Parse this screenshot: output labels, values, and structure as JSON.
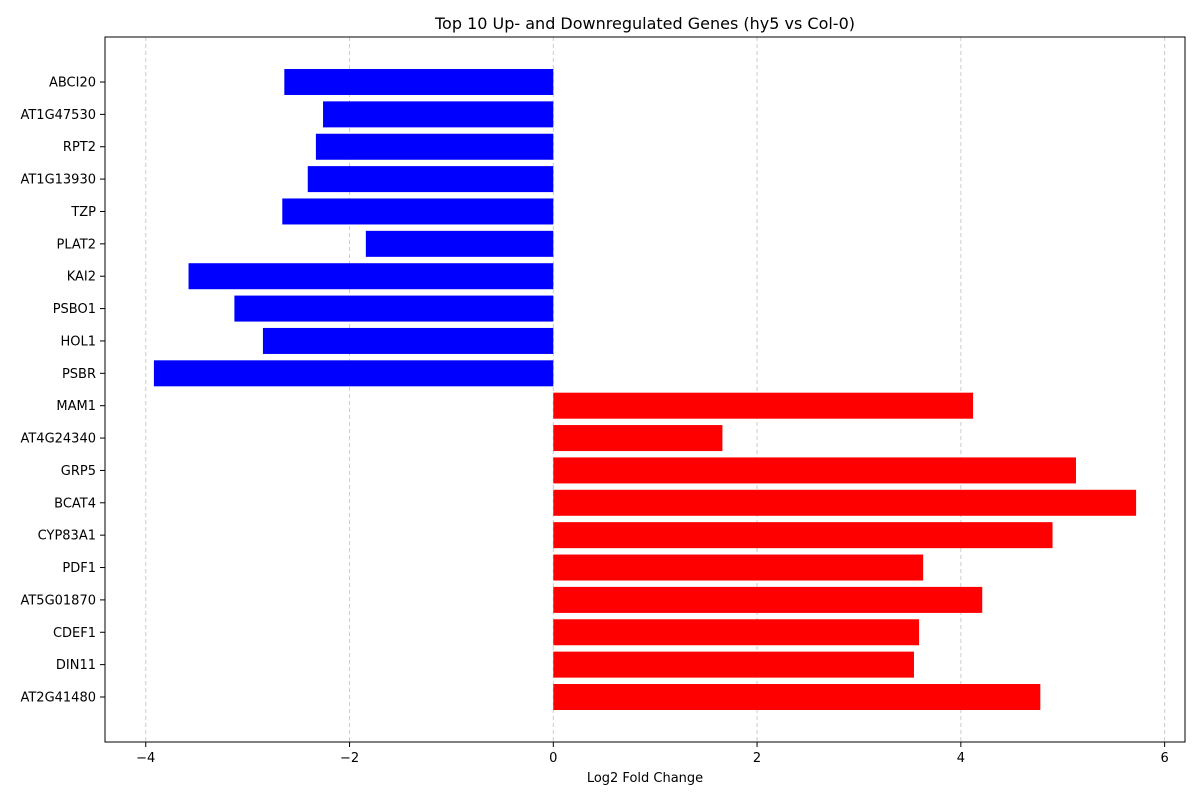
{
  "chart_data": {
    "type": "bar",
    "orientation": "horizontal",
    "title": "Top 10 Up- and Downregulated Genes (hy5 vs Col-0)",
    "xlabel": "Log2 Fold Change",
    "ylabel": "",
    "xlim": [
      -4.4,
      6.2
    ],
    "xticks": [
      -4,
      -2,
      0,
      2,
      4,
      6
    ],
    "xtick_labels": [
      "−4",
      "−2",
      "0",
      "2",
      "4",
      "6"
    ],
    "grid": "x-dashed",
    "colors": {
      "down": "#0000ff",
      "up": "#ff0000"
    },
    "categories": [
      "ABCI20",
      "AT1G47530",
      "RPT2",
      "AT1G13930",
      "TZP",
      "PLAT2",
      "KAI2",
      "PSBO1",
      "HOL1",
      "PSBR",
      "MAM1",
      "AT4G24340",
      "GRP5",
      "BCAT4",
      "CYP83A1",
      "PDF1",
      "AT5G01870",
      "CDEF1",
      "DIN11",
      "AT2G41480"
    ],
    "values": [
      -2.64,
      -2.26,
      -2.33,
      -2.41,
      -2.66,
      -1.84,
      -3.58,
      -3.13,
      -2.85,
      -3.92,
      4.12,
      1.66,
      5.13,
      5.72,
      4.9,
      3.63,
      4.21,
      3.59,
      3.54,
      4.78
    ]
  }
}
